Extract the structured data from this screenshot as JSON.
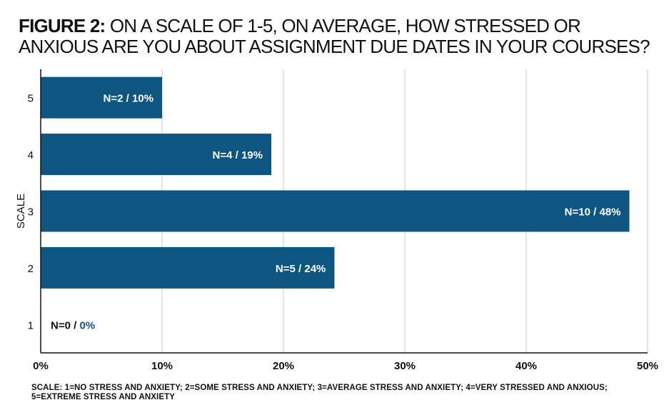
{
  "title": {
    "lead": "FIGURE 2:",
    "text": "ON A SCALE OF 1-5, ON AVERAGE, HOW STRESSED OR ANXIOUS ARE YOU ABOUT ASSIGNMENT DUE DATES IN YOUR COURSES?"
  },
  "footnote": "SCALE: 1=NO STRESS AND ANXIETY; 2=SOME STRESS AND ANXIETY; 3=AVERAGE STRESS AND ANXIETY; 4=VERY STRESSED AND ANXIOUS; 5=EXTREME STRESS AND ANXIETY",
  "colors": {
    "bar": "#0f5582",
    "grid": "#c8c8c8",
    "axis": "#111111",
    "label": "#ffffff",
    "zero_pct": "#0f5582"
  },
  "chart_data": {
    "type": "bar",
    "orientation": "horizontal",
    "categories": [
      "5",
      "4",
      "3",
      "2",
      "1"
    ],
    "values": [
      10,
      19,
      48.5,
      24.2,
      0
    ],
    "data_labels": [
      {
        "n": "N=2",
        "sep": " / ",
        "pct": "10%"
      },
      {
        "n": "N=4",
        "sep": " / ",
        "pct": "19%"
      },
      {
        "n": "N=10",
        "sep": " / ",
        "pct": "48%"
      },
      {
        "n": "N=5",
        "sep": " / ",
        "pct": "24%"
      },
      {
        "n": "N=0",
        "sep": " / ",
        "pct": "0%"
      }
    ],
    "xticks": [
      "0%",
      "10%",
      "20%",
      "30%",
      "40%",
      "50%"
    ],
    "xlim": [
      0,
      50
    ],
    "ylabel": "SCALE",
    "xlabel": "",
    "grid": true
  }
}
